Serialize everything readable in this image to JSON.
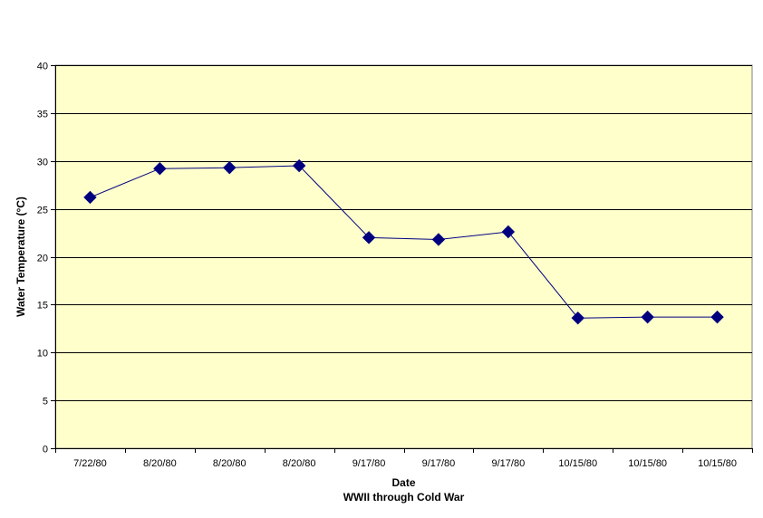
{
  "chart_data": {
    "type": "line",
    "title": "",
    "xlabel": "Date",
    "xlabel_sub": "WWII through Cold War",
    "ylabel": "Water Temperature (°C)",
    "ylim": [
      0,
      40
    ],
    "yticks": [
      0,
      5,
      10,
      15,
      20,
      25,
      30,
      35,
      40
    ],
    "grid": true,
    "legend": "none",
    "categories": [
      "7/22/80",
      "8/20/80",
      "8/20/80",
      "8/20/80",
      "9/17/80",
      "9/17/80",
      "9/17/80",
      "10/15/80",
      "10/15/80",
      "10/15/80"
    ],
    "series": [
      {
        "values": [
          26.2,
          29.2,
          29.3,
          29.5,
          22.0,
          21.8,
          22.6,
          13.6,
          13.7,
          13.7
        ]
      }
    ],
    "colors": {
      "plot_background": "#FFFFCC",
      "gridline": "#000000",
      "line": "#00007F",
      "marker": "#00007F"
    }
  }
}
